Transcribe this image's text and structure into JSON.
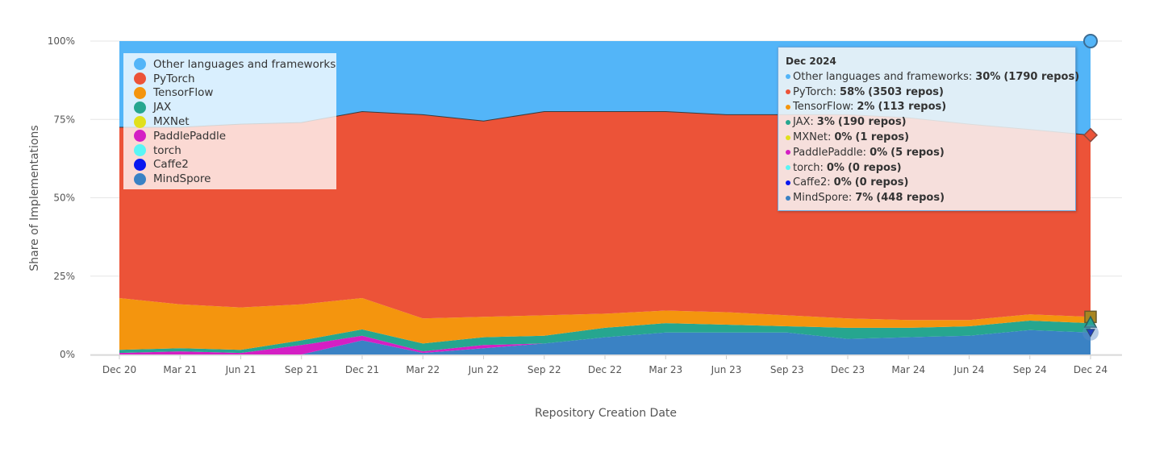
{
  "chart_data": {
    "type": "area",
    "stacked": true,
    "normalized": true,
    "x": [
      "Dec 20",
      "Mar 21",
      "Jun 21",
      "Sep 21",
      "Dec 21",
      "Mar 22",
      "Jun 22",
      "Sep 22",
      "Dec 22",
      "Mar 23",
      "Jun 23",
      "Sep 23",
      "Dec 23",
      "Mar 24",
      "Jun 24",
      "Sep 24",
      "Dec 24"
    ],
    "xlabel": "Repository Creation Date",
    "ylabel": "Share of Implementations",
    "ylim": [
      0,
      100
    ],
    "yticks": [
      "0%",
      "25%",
      "50%",
      "75%",
      "100%"
    ],
    "grid": true,
    "legend_position": "top-left",
    "series": [
      {
        "name": "MindSpore",
        "color": "#3a82c4",
        "values": [
          0,
          0,
          0,
          0,
          4.5,
          0.5,
          2,
          3.5,
          5.5,
          7,
          7,
          7,
          5,
          5.5,
          6,
          7.8,
          7
        ]
      },
      {
        "name": "Caffe2",
        "color": "#0a18f0",
        "values": [
          0,
          0,
          0,
          0,
          0,
          0,
          0,
          0,
          0,
          0,
          0,
          0,
          0,
          0,
          0,
          0,
          0
        ]
      },
      {
        "name": "torch",
        "color": "#5af5f5",
        "values": [
          0,
          0,
          0,
          0,
          0,
          0,
          0,
          0,
          0,
          0,
          0,
          0,
          0,
          0,
          0,
          0,
          0
        ]
      },
      {
        "name": "PaddlePaddle",
        "color": "#d41fc4",
        "values": [
          0.5,
          1,
          0.5,
          3,
          1.5,
          0.5,
          1,
          0,
          0,
          0,
          0,
          0,
          0,
          0,
          0,
          0,
          0
        ]
      },
      {
        "name": "MXNet",
        "color": "#e1e01c",
        "values": [
          0,
          0,
          0,
          0,
          0,
          0,
          0,
          0,
          0,
          0,
          0,
          0,
          0,
          0,
          0,
          0,
          0
        ]
      },
      {
        "name": "JAX",
        "color": "#26a68f",
        "values": [
          1,
          1,
          1,
          1.5,
          2,
          2.5,
          2.5,
          2.5,
          3,
          3,
          2.5,
          2,
          3.5,
          3,
          3,
          3,
          3
        ]
      },
      {
        "name": "TensorFlow",
        "color": "#f4950e",
        "values": [
          16.5,
          14,
          13.5,
          11.5,
          10,
          8,
          6.5,
          6.5,
          4.5,
          4,
          4,
          3.5,
          3,
          2.5,
          2,
          2,
          2
        ]
      },
      {
        "name": "PyTorch",
        "color": "#ec5338",
        "values": [
          54.5,
          56.5,
          58.5,
          58,
          59.5,
          65,
          62.5,
          65,
          64.5,
          63.5,
          63,
          64,
          65,
          64.5,
          62.5,
          59,
          58
        ]
      },
      {
        "name": "Other languages and frameworks",
        "color": "#53b5f8",
        "values": [
          27.5,
          27.5,
          26.5,
          26,
          22.5,
          23.5,
          25.5,
          22.5,
          22.5,
          22.5,
          23.5,
          23.5,
          23.5,
          24.5,
          26.5,
          28.2,
          30
        ]
      }
    ]
  },
  "legend": [
    {
      "label": "Other languages and frameworks",
      "color": "#53b5f8"
    },
    {
      "label": "PyTorch",
      "color": "#ec5338"
    },
    {
      "label": "TensorFlow",
      "color": "#f4950e"
    },
    {
      "label": "JAX",
      "color": "#26a68f"
    },
    {
      "label": "MXNet",
      "color": "#e1e01c"
    },
    {
      "label": "PaddlePaddle",
      "color": "#d41fc4"
    },
    {
      "label": "torch",
      "color": "#5af5f5"
    },
    {
      "label": "Caffe2",
      "color": "#0a18f0"
    },
    {
      "label": "MindSpore",
      "color": "#3a82c4"
    }
  ],
  "tooltip": {
    "title": "Dec 2024",
    "rows": [
      {
        "label": "Other languages and frameworks:",
        "value": "30%",
        "repos": "(1790 repos)",
        "color": "#53b5f8"
      },
      {
        "label": "PyTorch:",
        "value": "58%",
        "repos": "(3503 repos)",
        "color": "#ec5338"
      },
      {
        "label": "TensorFlow:",
        "value": "2%",
        "repos": "(113 repos)",
        "color": "#f4950e"
      },
      {
        "label": "JAX:",
        "value": "3%",
        "repos": "(190 repos)",
        "color": "#26a68f"
      },
      {
        "label": "MXNet:",
        "value": "0%",
        "repos": "(1 repos)",
        "color": "#e1e01c"
      },
      {
        "label": "PaddlePaddle:",
        "value": "0%",
        "repos": "(5 repos)",
        "color": "#d41fc4"
      },
      {
        "label": "torch:",
        "value": "0%",
        "repos": "(0 repos)",
        "color": "#5af5f5"
      },
      {
        "label": "Caffe2:",
        "value": "0%",
        "repos": "(0 repos)",
        "color": "#0a18f0"
      },
      {
        "label": "MindSpore:",
        "value": "7%",
        "repos": "(448 repos)",
        "color": "#3a82c4"
      }
    ]
  }
}
